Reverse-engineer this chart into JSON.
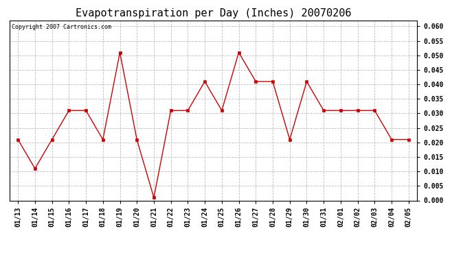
{
  "title": "Evapotranspiration per Day (Inches) 20070206",
  "copyright_text": "Copyright 2007 Cartronics.com",
  "dates": [
    "01/13",
    "01/14",
    "01/15",
    "01/16",
    "01/17",
    "01/18",
    "01/19",
    "01/20",
    "01/21",
    "01/22",
    "01/23",
    "01/24",
    "01/25",
    "01/26",
    "01/27",
    "01/28",
    "01/29",
    "01/30",
    "01/31",
    "02/01",
    "02/02",
    "02/03",
    "02/04",
    "02/05"
  ],
  "values": [
    0.021,
    0.011,
    0.021,
    0.031,
    0.031,
    0.021,
    0.051,
    0.021,
    0.001,
    0.031,
    0.031,
    0.041,
    0.031,
    0.051,
    0.041,
    0.041,
    0.021,
    0.041,
    0.031,
    0.031,
    0.031,
    0.031,
    0.021,
    0.021
  ],
  "line_color": "#cc0000",
  "marker": "s",
  "marker_size": 3,
  "ylim": [
    0.0,
    0.062
  ],
  "yticks": [
    0.0,
    0.005,
    0.01,
    0.015,
    0.02,
    0.025,
    0.03,
    0.035,
    0.04,
    0.045,
    0.05,
    0.055,
    0.06
  ],
  "grid_color": "#bbbbbb",
  "grid_linestyle": "--",
  "background_color": "#ffffff",
  "plot_bg_color": "#ffffff",
  "title_fontsize": 11,
  "copyright_fontsize": 6,
  "tick_fontsize": 7,
  "tick_fontweight": "bold"
}
